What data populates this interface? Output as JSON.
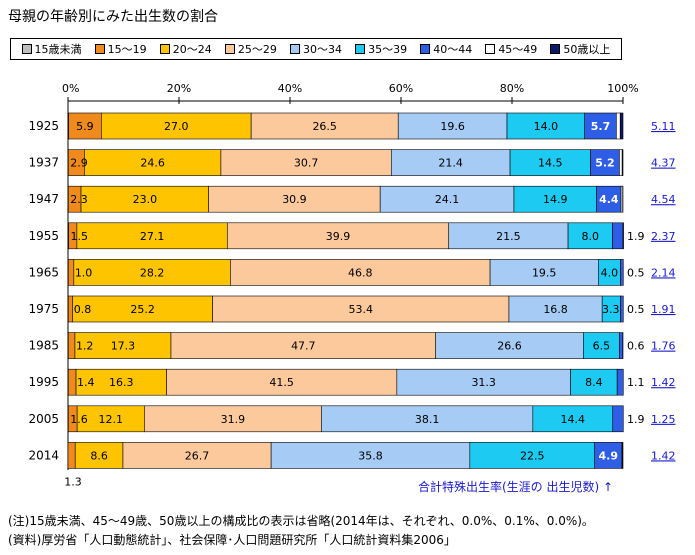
{
  "title": "母親の年齢別にみた出生数の割合",
  "legend": [
    {
      "label": "15歳未満",
      "color": "#bdbdbd"
    },
    {
      "label": "15〜19",
      "color": "#f08a1c"
    },
    {
      "label": "20〜24",
      "color": "#ffc400"
    },
    {
      "label": "25〜29",
      "color": "#fcc99c"
    },
    {
      "label": "30〜34",
      "color": "#a6cbf5"
    },
    {
      "label": "35〜39",
      "color": "#1ccaf2"
    },
    {
      "label": "40〜44",
      "color": "#2e5ee6"
    },
    {
      "label": "45〜49",
      "color": "#ffffff"
    },
    {
      "label": "50歳以上",
      "color": "#0c1a66"
    }
  ],
  "tfr_caption": "合計特殊出生率(生涯の 出生児数) ↑",
  "notes": [
    "(注)15歳未満、45〜49歳、50歳以上の構成比の表示は省略(2014年は、それぞれ、0.0%、0.1%、0.0%)。",
    "(資料)厚労省「人口動態統計」、社会保障･人口問題研究所「人口統計資料集2006」"
  ],
  "chart_data": {
    "type": "bar",
    "orientation": "horizontal",
    "stacked": true,
    "unit": "%",
    "xlim": [
      0,
      100
    ],
    "x_ticks": [
      "0%",
      "20%",
      "40%",
      "60%",
      "80%",
      "100%"
    ],
    "categories": [
      "1925",
      "1937",
      "1947",
      "1955",
      "1965",
      "1975",
      "1985",
      "1995",
      "2005",
      "2014"
    ],
    "series": [
      {
        "name": "15歳未満",
        "values": [
          0.1,
          0.05,
          0.05,
          0.1,
          0.05,
          0.05,
          0.05,
          0.05,
          0.05,
          0.0
        ]
      },
      {
        "name": "15〜19",
        "values": [
          5.9,
          2.9,
          2.3,
          1.5,
          1.0,
          0.8,
          1.2,
          1.4,
          1.6,
          1.3
        ]
      },
      {
        "name": "20〜24",
        "values": [
          27.0,
          24.6,
          23.0,
          27.1,
          28.2,
          25.2,
          17.3,
          16.3,
          12.1,
          8.6
        ]
      },
      {
        "name": "25〜29",
        "values": [
          26.5,
          30.7,
          30.9,
          39.9,
          46.8,
          53.4,
          47.7,
          41.5,
          31.9,
          26.7
        ]
      },
      {
        "name": "30〜34",
        "values": [
          19.6,
          21.4,
          24.1,
          21.5,
          19.5,
          16.8,
          26.6,
          31.3,
          38.1,
          35.8
        ]
      },
      {
        "name": "35〜39",
        "values": [
          14.0,
          14.5,
          14.9,
          8.0,
          4.0,
          3.3,
          6.5,
          8.4,
          14.4,
          22.5
        ]
      },
      {
        "name": "40〜44",
        "values": [
          5.7,
          5.2,
          4.4,
          1.9,
          0.5,
          0.5,
          0.6,
          1.1,
          1.9,
          4.9
        ]
      },
      {
        "name": "45〜49",
        "values": [
          0.7,
          0.5,
          0.3,
          0.1,
          0.0,
          0.0,
          0.0,
          0.0,
          0.0,
          0.1
        ]
      },
      {
        "name": "50歳以上",
        "values": [
          0.5,
          0.15,
          0.05,
          0.0,
          0.0,
          0.0,
          0.0,
          0.0,
          0.0,
          0.0
        ]
      }
    ],
    "segment_labels": [
      [
        "",
        "5.9",
        "27.0",
        "26.5",
        "19.6",
        "14.0",
        "5.7",
        "",
        ""
      ],
      [
        "",
        "2.9",
        "24.6",
        "30.7",
        "21.4",
        "14.5",
        "5.2",
        "",
        ""
      ],
      [
        "",
        "2.3",
        "23.0",
        "30.9",
        "24.1",
        "14.9",
        "4.4",
        "",
        ""
      ],
      [
        "",
        "1.5",
        "27.1",
        "39.9",
        "21.5",
        "8.0",
        "1.9",
        "",
        ""
      ],
      [
        "",
        "1.0",
        "28.2",
        "46.8",
        "19.5",
        "4.0",
        "0.5",
        "",
        ""
      ],
      [
        "",
        "0.8",
        "25.2",
        "53.4",
        "16.8",
        "3.3",
        "0.5",
        "",
        ""
      ],
      [
        "",
        "1.2",
        "17.3",
        "47.7",
        "26.6",
        "6.5",
        "0.6",
        "",
        ""
      ],
      [
        "",
        "1.4",
        "16.3",
        "41.5",
        "31.3",
        "8.4",
        "1.1",
        "",
        ""
      ],
      [
        "",
        "1.6",
        "12.1",
        "31.9",
        "38.1",
        "14.4",
        "1.9",
        "",
        ""
      ],
      [
        "",
        "1.3",
        "8.6",
        "26.7",
        "35.8",
        "22.5",
        "4.9",
        "",
        ""
      ]
    ],
    "tfr": [
      "5.11",
      "4.37",
      "4.54",
      "2.37",
      "2.14",
      "1.91",
      "1.76",
      "1.42",
      "1.25",
      "1.42"
    ]
  }
}
